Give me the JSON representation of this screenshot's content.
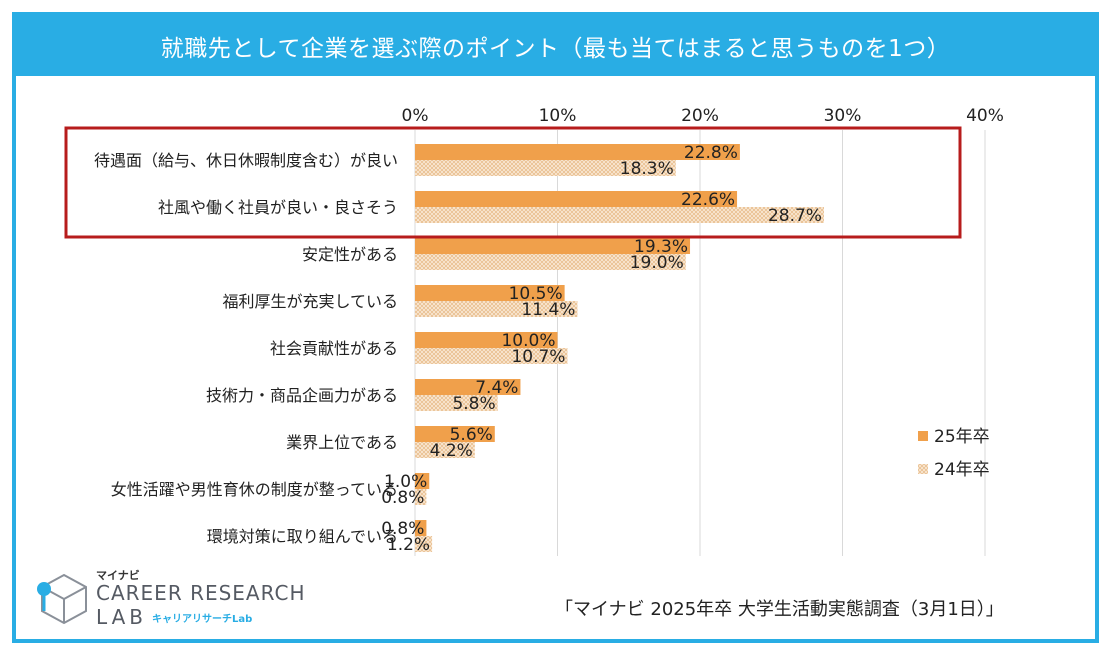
{
  "title": "就職先として企業を選ぶ際のポイント（最も当てはまると思うものを1つ）",
  "source": "「マイナビ 2025年卒 大学生活動実態調査（3月1日）」",
  "logo": {
    "top": "マイナビ",
    "main": "CAREER RESEARCH",
    "lab": "LAB",
    "sub": "キャリアリサーチLab"
  },
  "colors": {
    "frame": "#29ADE4",
    "series_25": "#F0A04B",
    "series_24": "#F5DFC4",
    "highlight": "#B71C1C",
    "grid": "#D9D9D9"
  },
  "chart_data": {
    "type": "bar",
    "orientation": "horizontal",
    "title": "就職先として企業を選ぶ際のポイント（最も当てはまると思うものを1つ）",
    "categories": [
      "待遇面（給与、休日休暇制度含む）が良い",
      "社風や働く社員が良い・良さそう",
      "安定性がある",
      "福利厚生が充実している",
      "社会貢献性がある",
      "技術力・商品企画力がある",
      "業界上位である",
      "女性活躍や男性育休の制度が整っている",
      "環境対策に取り組んでいる"
    ],
    "series": [
      {
        "name": "25年卒",
        "values": [
          22.8,
          22.6,
          19.3,
          10.5,
          10.0,
          7.4,
          5.6,
          1.0,
          0.8
        ]
      },
      {
        "name": "24年卒",
        "values": [
          18.3,
          28.7,
          19.0,
          11.4,
          10.7,
          5.8,
          4.2,
          0.8,
          1.2
        ]
      }
    ],
    "xlim": [
      0,
      40
    ],
    "ticks": [
      0,
      10,
      20,
      30,
      40
    ],
    "tick_labels": [
      "0%",
      "10%",
      "20%",
      "30%",
      "40%"
    ],
    "value_suffix": "%",
    "legend_position": "right",
    "highlighted_categories": [
      0,
      1
    ]
  }
}
